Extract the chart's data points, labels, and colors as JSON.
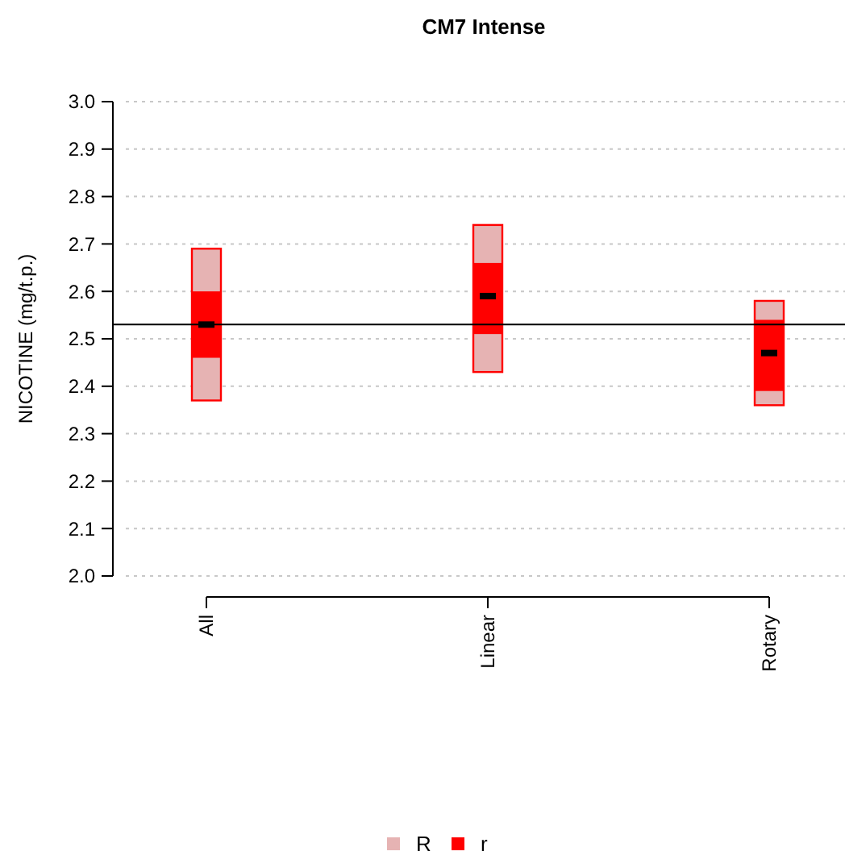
{
  "chart_data": {
    "type": "bar",
    "title": "CM7 Intense",
    "ylabel": "NICOTINE (mg/t.p.)",
    "categories": [
      "All",
      "Linear",
      "Rotary"
    ],
    "series": [
      {
        "name": "R",
        "color": "#e6b3b3",
        "base": [
          2.37,
          2.43,
          2.36
        ],
        "values": [
          0.32,
          0.31,
          0.22
        ]
      },
      {
        "name": "r",
        "color": "#ff0000",
        "base": [
          2.46,
          2.51,
          2.39
        ],
        "values": [
          0.14,
          0.15,
          0.15
        ]
      },
      {
        "type": "scatter",
        "color": "#000000",
        "x": [
          "All",
          "Linear",
          "Rotary"
        ],
        "values": [
          2.53,
          2.59,
          2.47
        ]
      }
    ],
    "ylim": [
      2.0,
      3.0
    ],
    "yticks": [
      {
        "value": 2.0,
        "label": "2.0"
      },
      2.1,
      2.2,
      2.3,
      2.4,
      2.5,
      2.6,
      2.7,
      2.8,
      2.9,
      {
        "value": 3.0,
        "label": "3.0"
      }
    ],
    "grid": "y",
    "legend": "bottom",
    "ref_lines": [
      {
        "axis": "y",
        "value": 2.53,
        "color": "#000000"
      }
    ]
  }
}
